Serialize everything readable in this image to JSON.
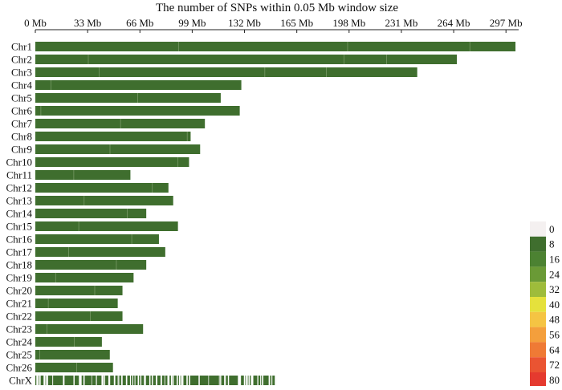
{
  "chart_data": {
    "type": "heatmap",
    "title": "The number of SNPs within 0.05 Mb window size",
    "xlabel": "",
    "ylabel": "",
    "x_unit": "Mb",
    "xlim": [
      0,
      305
    ],
    "x_tick_values": [
      0,
      33,
      66,
      99,
      132,
      165,
      198,
      231,
      264,
      297
    ],
    "x_tick_labels": [
      "0 Mb",
      "33 Mb",
      "66 Mb",
      "99 Mb",
      "132 Mb",
      "165 Mb",
      "198 Mb",
      "231 Mb",
      "264 Mb",
      "297 Mb"
    ],
    "x_axis_position": "top",
    "grid": false,
    "chromosomes": [
      {
        "label": "Chr1",
        "length_mb": 303
      },
      {
        "label": "Chr2",
        "length_mb": 266
      },
      {
        "label": "Chr3",
        "length_mb": 241
      },
      {
        "label": "Chr4",
        "length_mb": 130
      },
      {
        "label": "Chr5",
        "length_mb": 117
      },
      {
        "label": "Chr6",
        "length_mb": 129
      },
      {
        "label": "Chr7",
        "length_mb": 107
      },
      {
        "label": "Chr8",
        "length_mb": 98
      },
      {
        "label": "Chr9",
        "length_mb": 104
      },
      {
        "label": "Chr10",
        "length_mb": 97
      },
      {
        "label": "Chr11",
        "length_mb": 60
      },
      {
        "label": "Chr12",
        "length_mb": 84
      },
      {
        "label": "Chr13",
        "length_mb": 87
      },
      {
        "label": "Chr14",
        "length_mb": 70
      },
      {
        "label": "Chr15",
        "length_mb": 90
      },
      {
        "label": "Chr16",
        "length_mb": 78
      },
      {
        "label": "Chr17",
        "length_mb": 82
      },
      {
        "label": "Chr18",
        "length_mb": 70
      },
      {
        "label": "Chr19",
        "length_mb": 62
      },
      {
        "label": "Chr20",
        "length_mb": 55
      },
      {
        "label": "Chr21",
        "length_mb": 52
      },
      {
        "label": "Chr22",
        "length_mb": 55
      },
      {
        "label": "Chr23",
        "length_mb": 68
      },
      {
        "label": "Chr24",
        "length_mb": 42
      },
      {
        "label": "Chr25",
        "length_mb": 47
      },
      {
        "label": "Chr26",
        "length_mb": 49
      },
      {
        "label": "ChrX",
        "length_mb": 152
      }
    ],
    "sparse_chromosome": "ChrX",
    "legend": {
      "placement": "right",
      "labels": [
        "0",
        "8",
        "16",
        "24",
        "32",
        "40",
        "48",
        "56",
        "64",
        "72",
        "80"
      ],
      "colors": [
        "#f4f0f0",
        "#3f6e2e",
        "#4c8232",
        "#6a9a36",
        "#9ebc3b",
        "#e5e13c",
        "#f5c443",
        "#f49f3c",
        "#ef7a35",
        "#ea5432",
        "#e53a2f"
      ]
    },
    "bar_color": "#3f6e2e",
    "gap_color": "#8aa878"
  }
}
